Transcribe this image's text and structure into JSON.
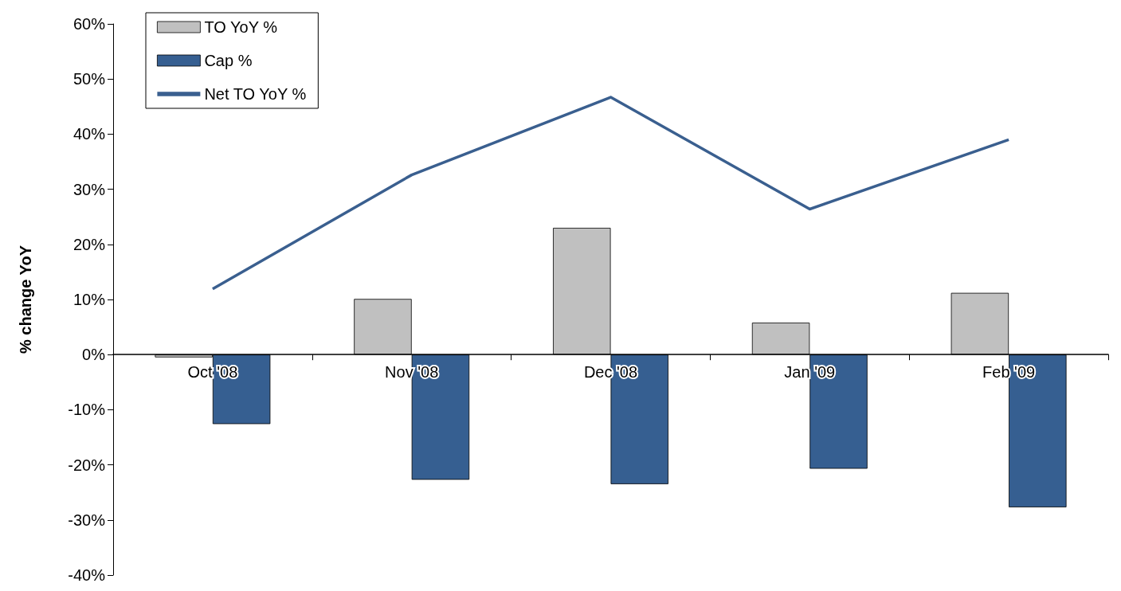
{
  "chart_data": {
    "type": "bar",
    "ylabel": "% change YoY",
    "categories": [
      "Oct '08",
      "Nov '08",
      "Dec '08",
      "Jan '09",
      "Feb '09"
    ],
    "series": [
      {
        "name": "TO YoY %",
        "color": "#c0c0c0",
        "values": [
          -0.5,
          10.1,
          23.0,
          5.8,
          11.2
        ]
      },
      {
        "name": "Cap %",
        "color": "#365f91",
        "values": [
          -12.6,
          -22.7,
          -23.5,
          -20.7,
          -27.7
        ]
      },
      {
        "name": "Net TO YoY %",
        "type": "line",
        "color": "#3a5f8f",
        "values": [
          11.9,
          32.6,
          46.7,
          26.4,
          39.0
        ]
      }
    ],
    "ylim": [
      -40,
      60
    ],
    "yticks": [
      {
        "value": -40,
        "label": "-40%"
      },
      {
        "value": -30,
        "label": "-30%"
      },
      {
        "value": -20,
        "label": "-20%"
      },
      {
        "value": -10,
        "label": "-10%"
      },
      {
        "value": 0,
        "label": "0%"
      },
      {
        "value": 10,
        "label": "10%"
      },
      {
        "value": 20,
        "label": "20%"
      },
      {
        "value": 30,
        "label": "30%"
      },
      {
        "value": 40,
        "label": "40%"
      },
      {
        "value": 50,
        "label": "50%"
      },
      {
        "value": 60,
        "label": "60%"
      }
    ],
    "grid": false,
    "legend": "top left",
    "marker": "none",
    "line_style": "solid"
  }
}
